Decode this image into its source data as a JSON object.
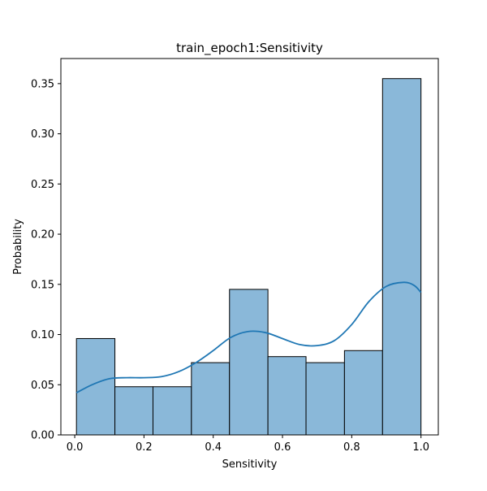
{
  "chart_data": {
    "type": "bar",
    "title": "train_epoch1:Sensitivity",
    "xlabel": "Sensitivity",
    "ylabel": "Probability",
    "xlim": [
      -0.04,
      1.05
    ],
    "ylim": [
      0,
      0.375
    ],
    "xticks": [
      0.0,
      0.2,
      0.4,
      0.6,
      0.8,
      1.0
    ],
    "xtick_labels": [
      "0.0",
      "0.2",
      "0.4",
      "0.6",
      "0.8",
      "1.0"
    ],
    "yticks": [
      0.0,
      0.05,
      0.1,
      0.15,
      0.2,
      0.25,
      0.3,
      0.35
    ],
    "ytick_labels": [
      "0.00",
      "0.05",
      "0.10",
      "0.15",
      "0.20",
      "0.25",
      "0.30",
      "0.35"
    ],
    "grid": false,
    "bins": [
      {
        "x0": 0.005,
        "x1": 0.116,
        "value": 0.096
      },
      {
        "x0": 0.116,
        "x1": 0.226,
        "value": 0.048
      },
      {
        "x0": 0.226,
        "x1": 0.337,
        "value": 0.048
      },
      {
        "x0": 0.337,
        "x1": 0.447,
        "value": 0.072
      },
      {
        "x0": 0.447,
        "x1": 0.558,
        "value": 0.145
      },
      {
        "x0": 0.558,
        "x1": 0.668,
        "value": 0.078
      },
      {
        "x0": 0.668,
        "x1": 0.779,
        "value": 0.072
      },
      {
        "x0": 0.779,
        "x1": 0.889,
        "value": 0.084
      },
      {
        "x0": 0.889,
        "x1": 1.0,
        "value": 0.355
      }
    ],
    "kde": {
      "x": [
        0.005,
        0.05,
        0.1,
        0.15,
        0.2,
        0.25,
        0.3,
        0.35,
        0.4,
        0.45,
        0.5,
        0.55,
        0.6,
        0.65,
        0.7,
        0.75,
        0.8,
        0.85,
        0.9,
        0.95,
        0.98,
        1.0
      ],
      "y": [
        0.042,
        0.05,
        0.056,
        0.057,
        0.057,
        0.058,
        0.063,
        0.072,
        0.084,
        0.097,
        0.103,
        0.102,
        0.096,
        0.09,
        0.089,
        0.094,
        0.11,
        0.133,
        0.148,
        0.152,
        0.149,
        0.142
      ]
    },
    "colors": {
      "bar_fill": "#8ab8d9",
      "bar_edge": "#000000",
      "kde_line": "#1f77b4"
    }
  }
}
